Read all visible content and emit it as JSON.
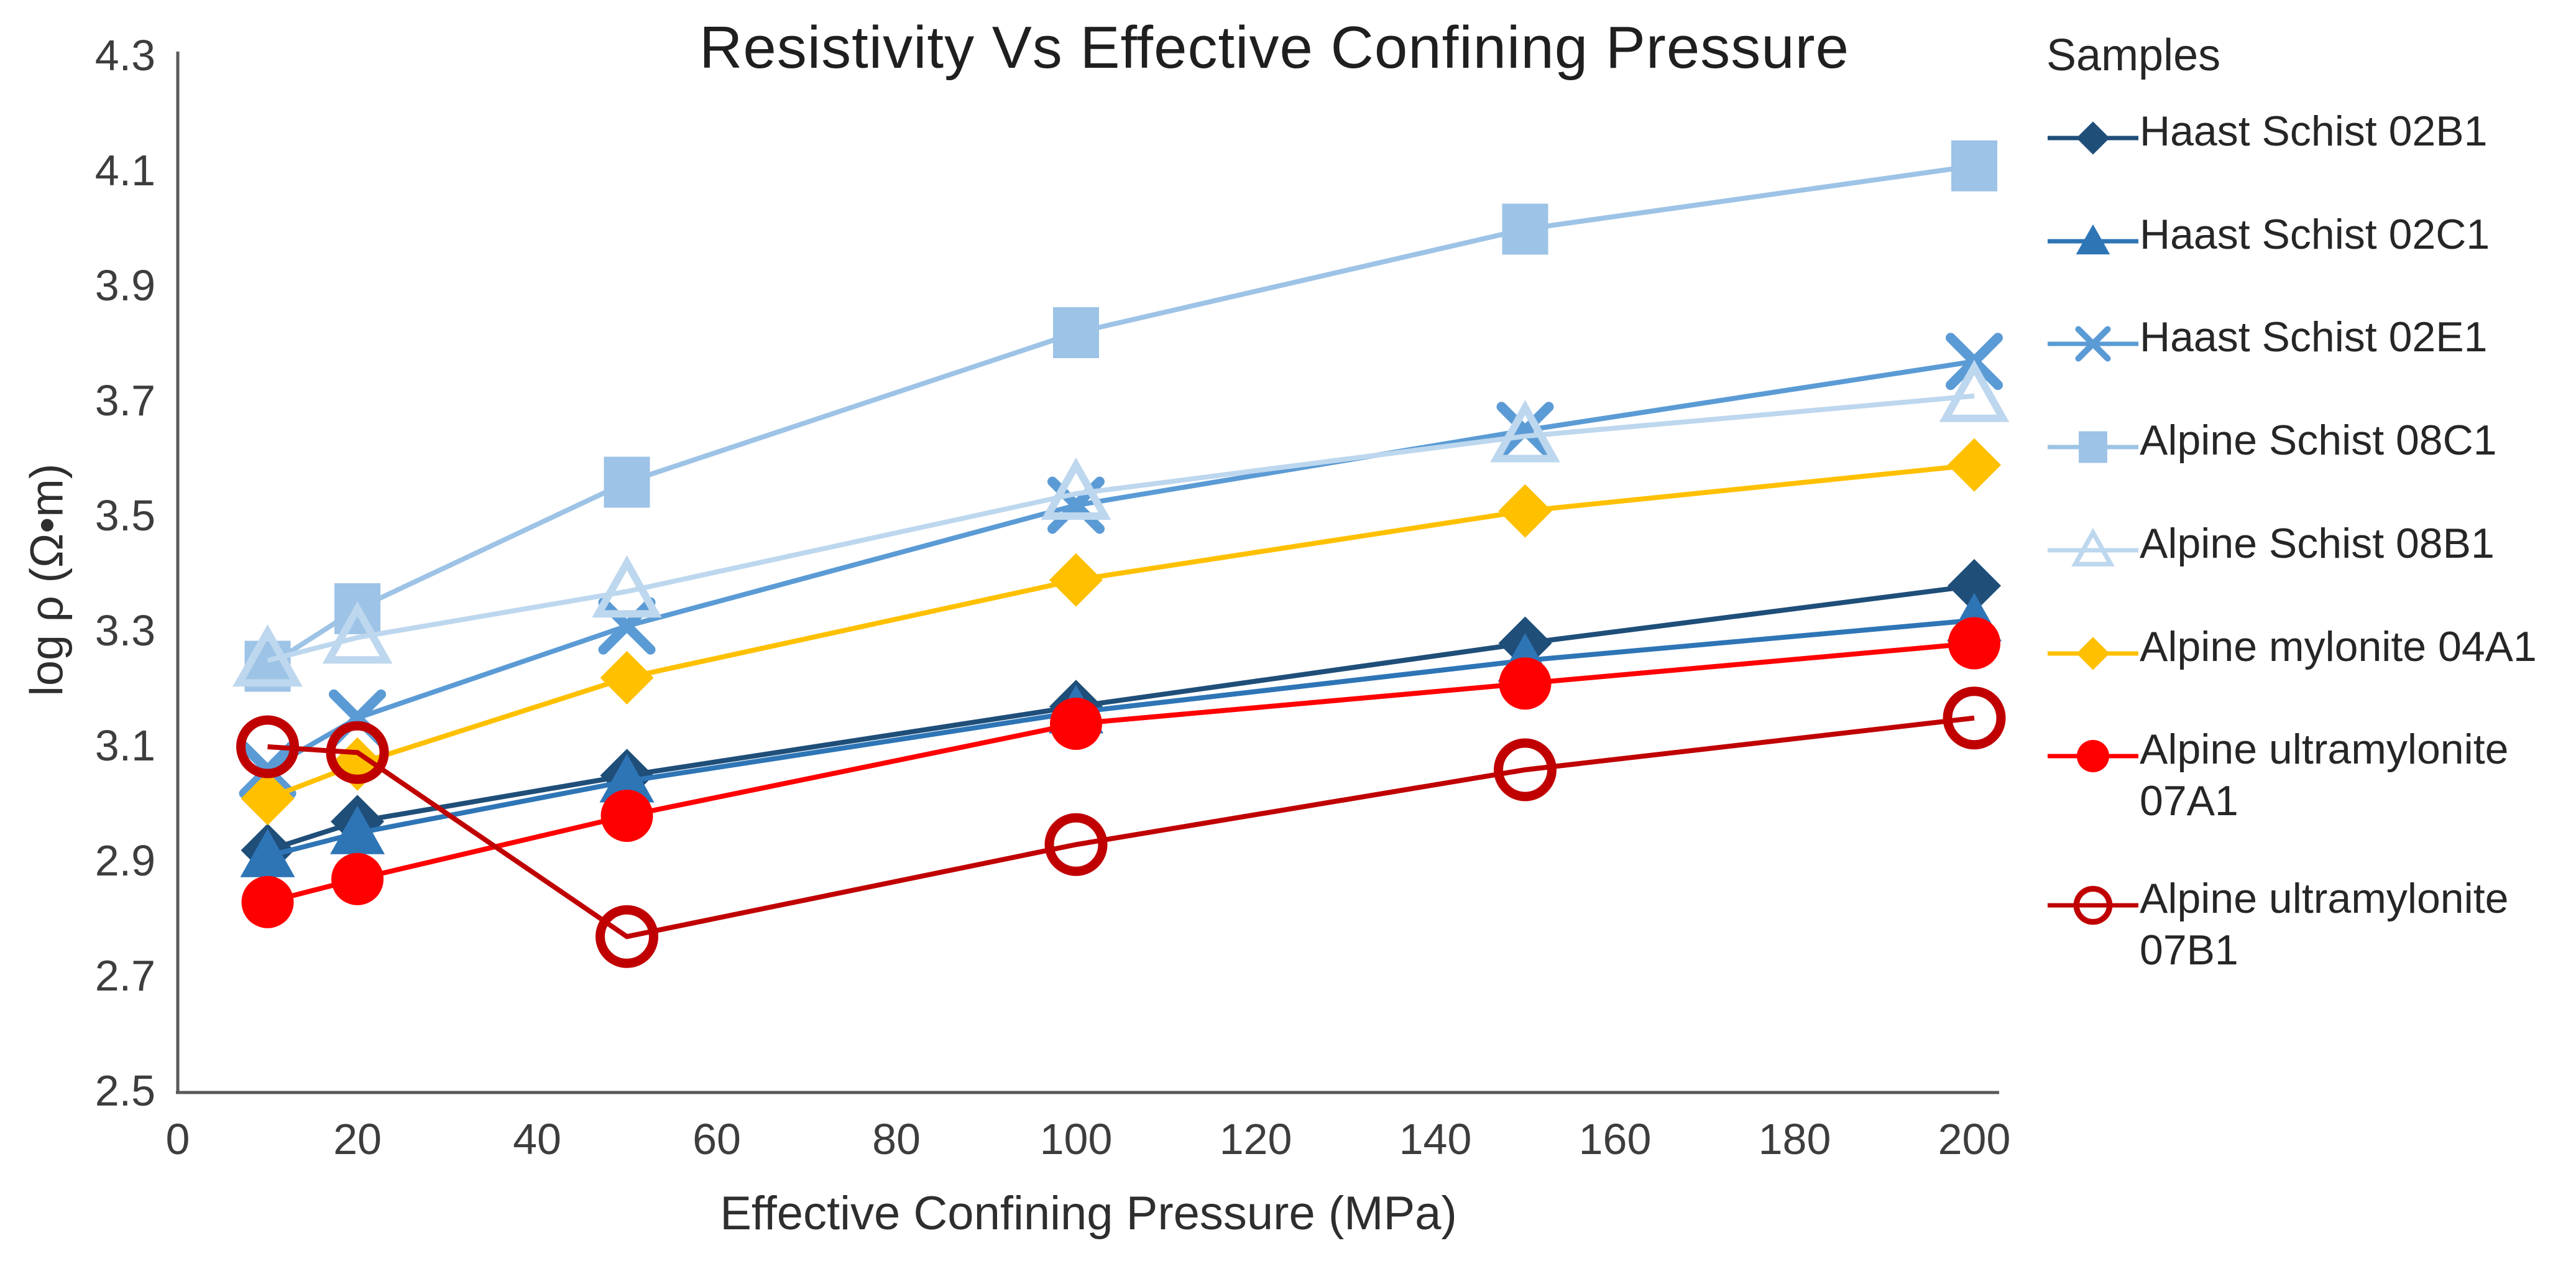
{
  "page": {
    "background": "#ffffff",
    "axis_color": "#595959",
    "tick_text_color": "#3d3d3d"
  },
  "legend": {
    "title": "Samples"
  },
  "chart_data": {
    "type": "line",
    "title": "Resistivity Vs Effective Confining Pressure",
    "xlabel": "Effective Confining Pressure (MPa)",
    "ylabel": "log ρ (Ω•m)",
    "xlim": [
      0,
      200
    ],
    "ylim": [
      2.5,
      4.3
    ],
    "x_ticks": [
      0,
      20,
      40,
      60,
      80,
      100,
      120,
      140,
      160,
      180,
      200
    ],
    "y_ticks": [
      4.3,
      4.1,
      3.9,
      3.7,
      3.5,
      3.3,
      3.1,
      2.9,
      2.7,
      2.5
    ],
    "grid": false,
    "legend_position": "right",
    "x": [
      10,
      20,
      50,
      100,
      150,
      200
    ],
    "series": [
      {
        "name": "Haast Schist 02B1",
        "marker": "diamond",
        "color": "#1F4E79",
        "values": [
          2.92,
          2.97,
          3.05,
          3.17,
          3.28,
          3.38
        ]
      },
      {
        "name": "Haast Schist 02C1",
        "marker": "triangle",
        "color": "#2E75B6",
        "values": [
          2.91,
          2.95,
          3.04,
          3.16,
          3.25,
          3.32
        ]
      },
      {
        "name": "Haast Schist 02E1",
        "marker": "x",
        "color": "#5B9BD5",
        "values": [
          3.06,
          3.15,
          3.31,
          3.52,
          3.65,
          3.77
        ]
      },
      {
        "name": "Alpine Schist 08C1",
        "marker": "square",
        "color": "#9DC3E6",
        "values": [
          3.24,
          3.34,
          3.56,
          3.82,
          4.0,
          4.11
        ]
      },
      {
        "name": "Alpine Schist 08B1",
        "marker": "triangle-open",
        "color": "#BDD7EE",
        "values": [
          3.25,
          3.29,
          3.37,
          3.54,
          3.64,
          3.71
        ]
      },
      {
        "name": "Alpine mylonite 04A1",
        "marker": "diamond",
        "color": "#FFC000",
        "values": [
          3.01,
          3.07,
          3.22,
          3.39,
          3.51,
          3.59
        ]
      },
      {
        "name": "Alpine ultramylonite 07A1",
        "marker": "circle",
        "color": "#FF0000",
        "values": [
          2.83,
          2.87,
          2.98,
          3.14,
          3.21,
          3.28
        ]
      },
      {
        "name": "Alpine ultramylonite 07B1",
        "marker": "circle-open",
        "color": "#C00000",
        "values": [
          3.1,
          3.09,
          2.77,
          2.93,
          3.06,
          3.15
        ]
      }
    ]
  }
}
